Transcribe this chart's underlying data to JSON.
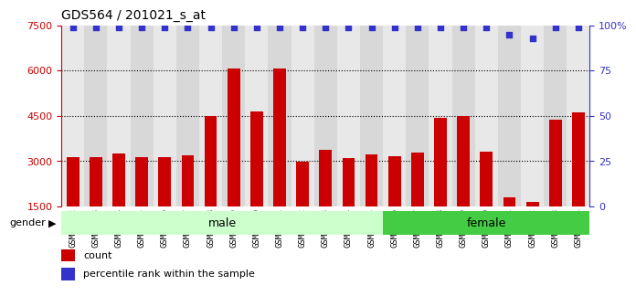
{
  "title": "GDS564 / 201021_s_at",
  "samples": [
    "GSM19192",
    "GSM19193",
    "GSM19194",
    "GSM19195",
    "GSM19196",
    "GSM19197",
    "GSM19198",
    "GSM19199",
    "GSM19200",
    "GSM19201",
    "GSM19202",
    "GSM19203",
    "GSM19204",
    "GSM19205",
    "GSM19206",
    "GSM19207",
    "GSM19208",
    "GSM19209",
    "GSM19210",
    "GSM19211",
    "GSM19212",
    "GSM19213",
    "GSM19214"
  ],
  "counts": [
    3130,
    3120,
    3260,
    3120,
    3140,
    3180,
    4500,
    6060,
    4650,
    6080,
    2980,
    3380,
    3100,
    3220,
    3160,
    3290,
    4430,
    4500,
    3310,
    1790,
    1650,
    4380,
    4620
  ],
  "percentiles": [
    99,
    99,
    99,
    99,
    99,
    99,
    99,
    99,
    99,
    99,
    99,
    99,
    99,
    99,
    99,
    99,
    99,
    99,
    99,
    95,
    93,
    99,
    99
  ],
  "male_count": 14,
  "female_count": 9,
  "ylim_left": [
    1500,
    7500
  ],
  "ylim_right": [
    0,
    100
  ],
  "yticks_left": [
    1500,
    3000,
    4500,
    6000,
    7500
  ],
  "yticks_right": [
    0,
    25,
    50,
    75,
    100
  ],
  "bar_color": "#cc0000",
  "dot_color": "#3333cc",
  "male_bg": "#ccffcc",
  "female_bg": "#44cc44",
  "tick_color_left": "#cc0000",
  "tick_color_right": "#3333cc",
  "grid_color": "#000000",
  "col_bg_odd": "#d8d8d8",
  "col_bg_even": "#e8e8e8",
  "plot_bg": "#e0e0e0",
  "legend_count_color": "#cc0000",
  "legend_pct_color": "#3333cc"
}
